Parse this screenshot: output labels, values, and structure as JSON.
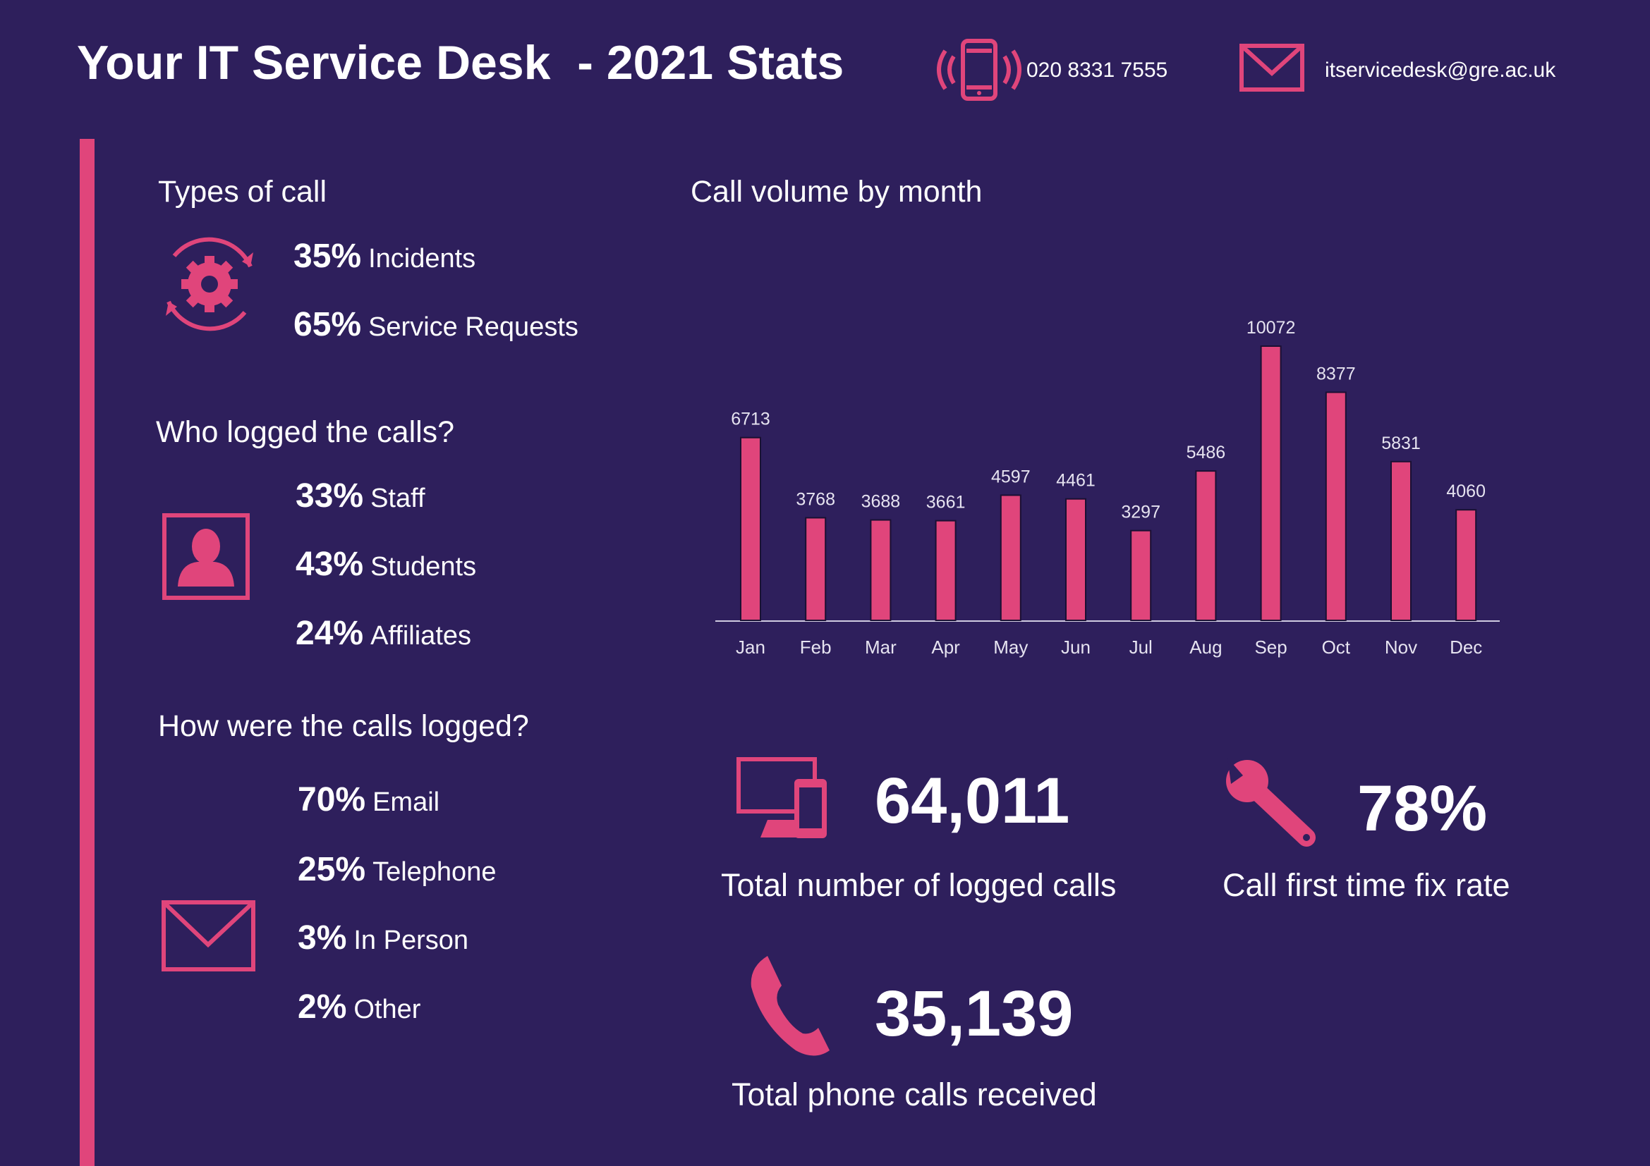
{
  "header": {
    "title": "Your IT Service Desk  - 2021 Stats",
    "phone": "020 8331 7555",
    "email": "itservicedesk@gre.ac.uk"
  },
  "types_of_call": {
    "title": "Types of call",
    "items": [
      {
        "percent": "35%",
        "label": "Incidents"
      },
      {
        "percent": "65%",
        "label": "Service Requests"
      }
    ]
  },
  "who_logged": {
    "title": "Who logged the calls?",
    "items": [
      {
        "percent": "33%",
        "label": "Staff"
      },
      {
        "percent": "43%",
        "label": "Students"
      },
      {
        "percent": "24%",
        "label": "Affiliates"
      }
    ]
  },
  "how_logged": {
    "title": "How were the calls logged?",
    "items": [
      {
        "percent": "70%",
        "label": "Email"
      },
      {
        "percent": "25%",
        "label": "Telephone"
      },
      {
        "percent": "3%",
        "label": "In Person"
      },
      {
        "percent": "2%",
        "label": "Other"
      }
    ]
  },
  "chart_data": {
    "type": "bar",
    "title": "Call volume by month",
    "categories": [
      "Jan",
      "Feb",
      "Mar",
      "Apr",
      "May",
      "Jun",
      "Jul",
      "Aug",
      "Sep",
      "Oct",
      "Nov",
      "Dec"
    ],
    "values": [
      6713,
      3768,
      3688,
      3661,
      4597,
      4461,
      3297,
      5486,
      10072,
      8377,
      5831,
      4060
    ],
    "color": "#e0457b"
  },
  "stats": [
    {
      "value": "64,011",
      "label": "Total number of logged calls"
    },
    {
      "value": "78%",
      "label": "Call first time fix rate"
    },
    {
      "value": "35,139",
      "label": "Total phone calls received"
    }
  ]
}
